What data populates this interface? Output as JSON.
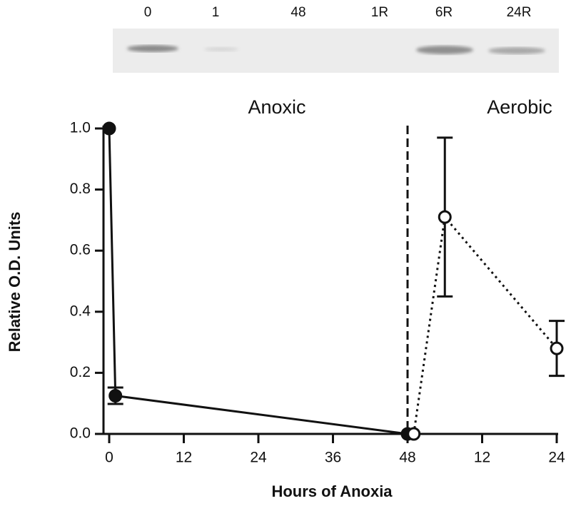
{
  "chart_data": {
    "type": "line",
    "blot_lanes": [
      "0",
      "1",
      "48",
      "1R",
      "6R",
      "24R"
    ],
    "xlabel": "Hours of Anoxia",
    "ylabel": "Relative O.D. Units",
    "annotations": [
      "Anoxic",
      "Aerobic"
    ],
    "vline": 48,
    "xlim": [
      0,
      72
    ],
    "xticks": [
      0,
      12,
      24,
      36,
      48,
      {
        "value": 60,
        "label": "12"
      },
      {
        "value": 72,
        "label": "24"
      }
    ],
    "ylim": [
      0,
      1
    ],
    "yticks": [
      {
        "value": 0,
        "label": "0.0"
      },
      {
        "value": 0.2,
        "label": "0.2"
      },
      {
        "value": 0.4,
        "label": "0.4"
      },
      {
        "value": 0.6,
        "label": "0.6"
      },
      {
        "value": 0.8,
        "label": "0.8"
      },
      {
        "value": 1,
        "label": "1.0"
      }
    ],
    "series": [
      {
        "color": "#111111",
        "line_style": "solid",
        "marker_fill": "#111111",
        "x": [
          0,
          1,
          48
        ],
        "values": [
          1.0,
          0.125,
          0
        ],
        "errors": [
          null,
          0.027,
          null
        ]
      },
      {
        "color": "#111111",
        "line_style": "dotted",
        "marker_fill": "#ffffff",
        "x": [
          49,
          54,
          72
        ],
        "values": [
          0,
          0.71,
          0.28
        ],
        "errors": [
          null,
          0.26,
          0.09
        ]
      }
    ]
  }
}
